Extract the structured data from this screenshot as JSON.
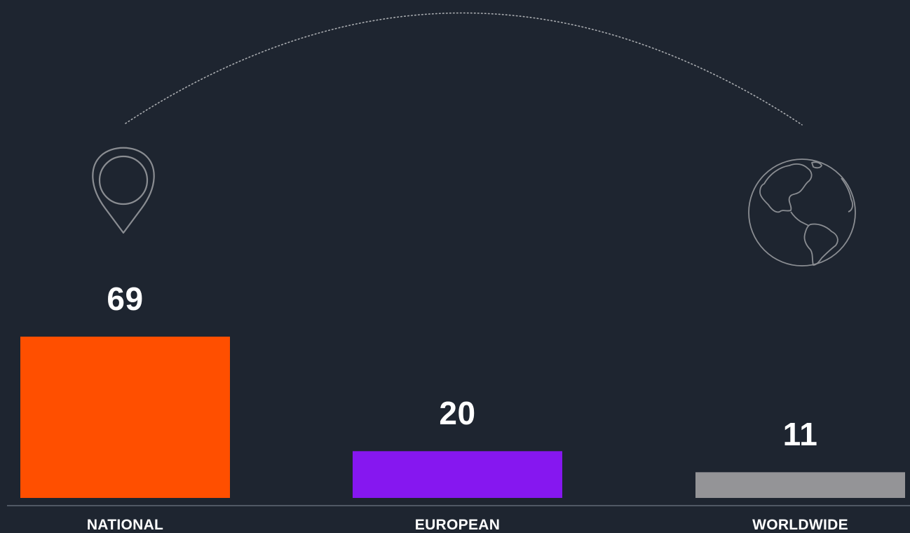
{
  "chart_data": {
    "type": "bar",
    "categories": [
      "NATIONAL",
      "EUROPEAN",
      "WORLDWIDE"
    ],
    "values": [
      69,
      20,
      11
    ],
    "value_labels": [
      "69",
      "20",
      "11"
    ],
    "colors": [
      "#ff4f00",
      "#8617f0",
      "#949497"
    ],
    "grid": false,
    "legend": "none"
  },
  "icons": {
    "national": "map-pin-icon",
    "worldwide": "globe-icon",
    "connector": "dotted-arc"
  },
  "colors": {
    "background": "#1e2530",
    "baseline": "#6f7782",
    "icon_stroke": "#8a8d92",
    "text": "#ffffff"
  }
}
